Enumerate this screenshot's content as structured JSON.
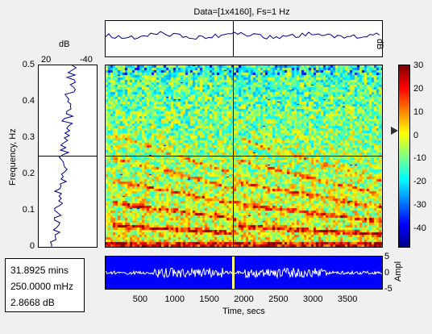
{
  "title": "Data=[1x4160], Fs=1 Hz",
  "left_panel": {
    "unit_label": "dB",
    "x_ticks": [
      "20",
      "-40"
    ]
  },
  "y_axis": {
    "label": "Frequency, Hz",
    "ticks": [
      "0.5",
      "0.4",
      "0.3",
      "0.2",
      "0.1",
      "0"
    ]
  },
  "x_axis": {
    "label": "Time, secs",
    "ticks": [
      "500",
      "1000",
      "1500",
      "2000",
      "2500",
      "3000",
      "3500"
    ]
  },
  "top_panel": {
    "unit_label": "dB"
  },
  "colorbar": {
    "ticks": [
      "30",
      "20",
      "10",
      "0",
      "-10",
      "-20",
      "-30",
      "-40"
    ],
    "colors": [
      "#00008f",
      "#0000ff",
      "#0080ff",
      "#00ffff",
      "#80ff80",
      "#ffff00",
      "#ff8000",
      "#ff0000",
      "#800000"
    ]
  },
  "bottom_panel": {
    "unit_label": "Ampl",
    "ticks": [
      "5",
      "0",
      "-5"
    ],
    "background": "#0000ff",
    "cursor_color": "#ffff80"
  },
  "readout": {
    "time": "31.8925 mins",
    "frequency": "250.0000 mHz",
    "level": "2.8668 dB"
  },
  "chart_data": {
    "type": "heatmap",
    "title": "Data=[1x4160], Fs=1 Hz",
    "xlabel": "Time, secs",
    "ylabel": "Frequency, Hz",
    "xlim": [
      0,
      4000
    ],
    "ylim": [
      0,
      0.5
    ],
    "color_scale_db": [
      -48,
      30
    ],
    "cursor": {
      "time_secs": 1913.55,
      "frequency_hz": 0.25
    }
  }
}
